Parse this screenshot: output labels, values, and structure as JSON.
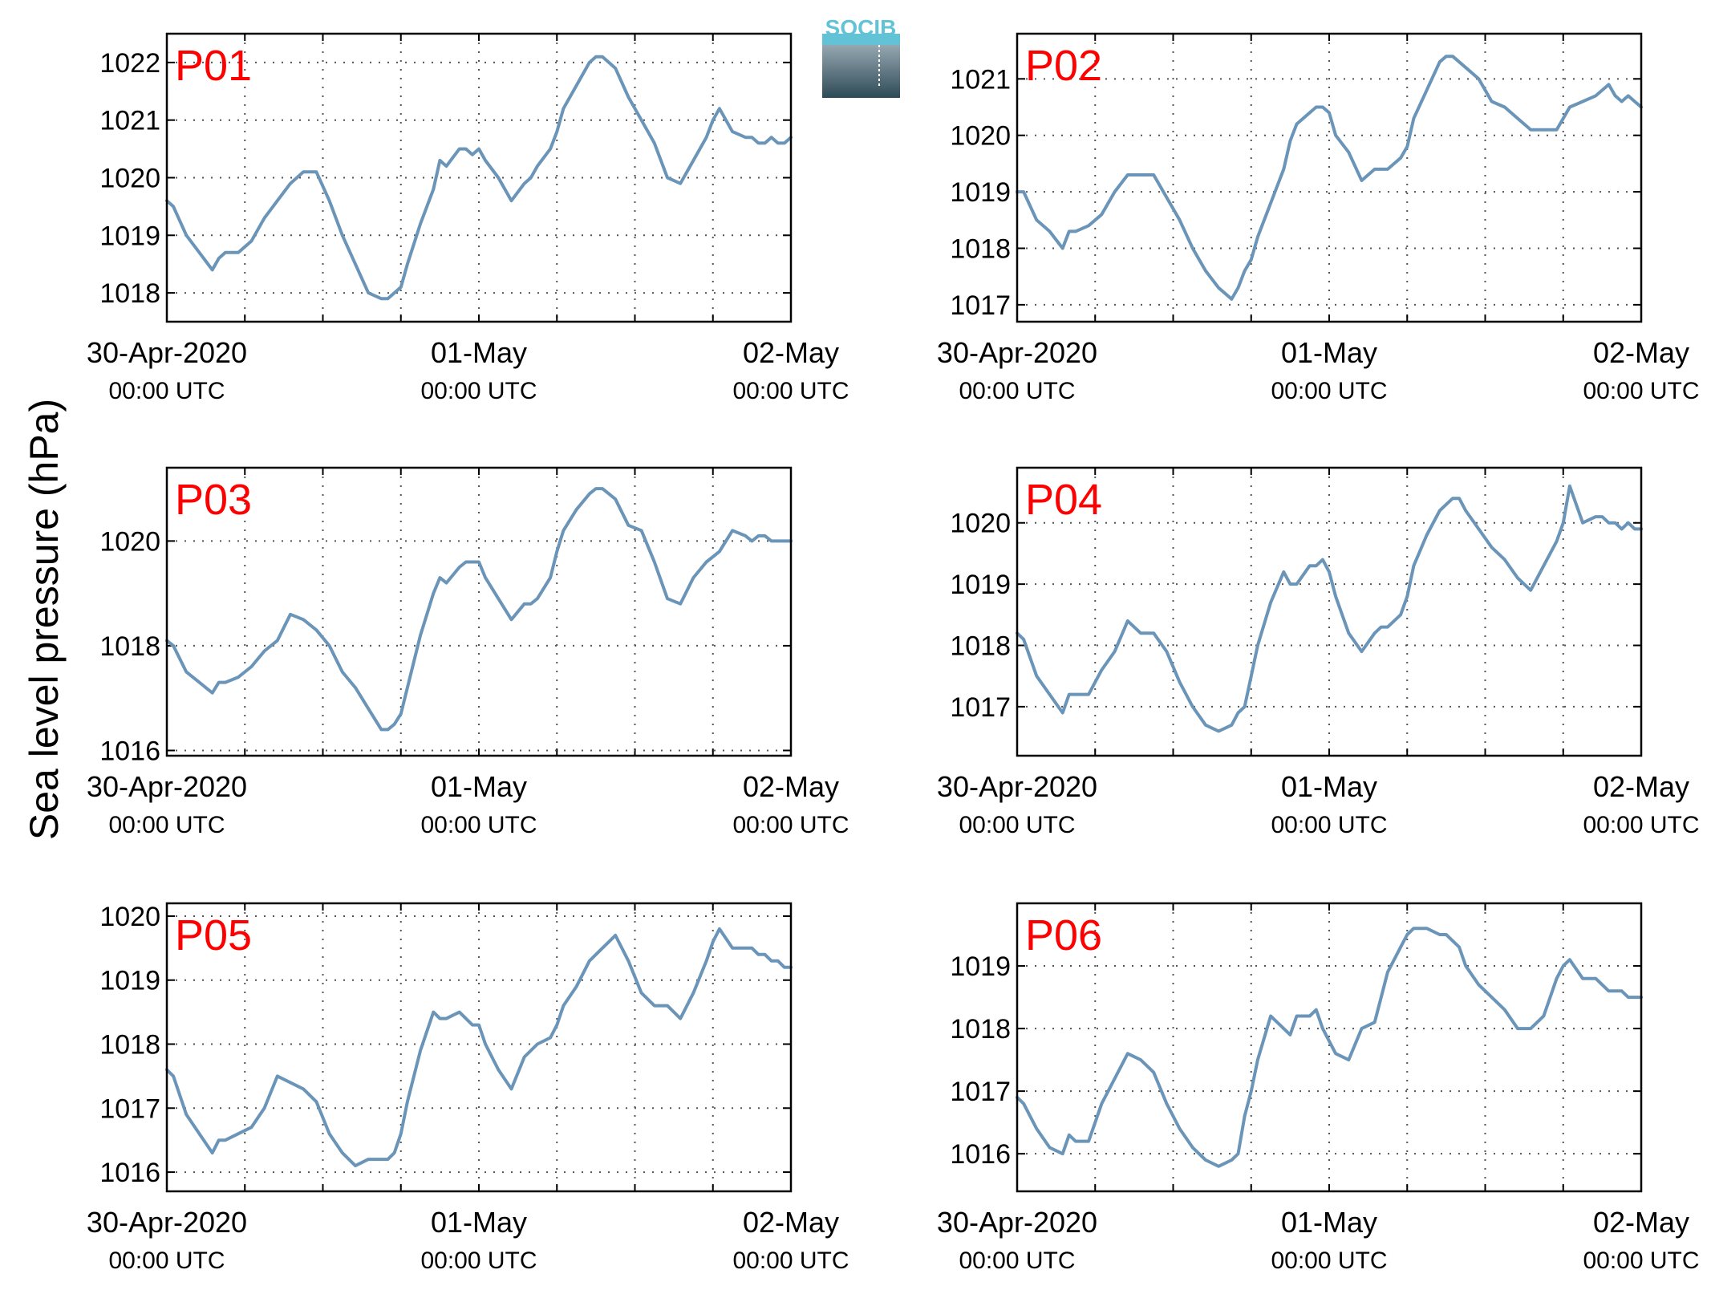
{
  "figure": {
    "ylabel": "Sea level pressure (hPa)",
    "logo_text": "SOCIB"
  },
  "colors": {
    "line": "#6a95b8",
    "panel_label": "#ff0000",
    "axis": "#000000",
    "grid": "#555555",
    "logo_top": "#62c3d6",
    "logo_bottom": "#2e4a57"
  },
  "chart_data": [
    {
      "type": "line",
      "title": "P01",
      "xlim": [
        0,
        48
      ],
      "ylim": [
        1017.5,
        1022.5
      ],
      "grid": true,
      "yticks": [
        1018,
        1019,
        1020,
        1021,
        1022
      ],
      "xticks": [
        {
          "x": 0,
          "label": "30-Apr-2020",
          "sublabel": "00:00 UTC"
        },
        {
          "x": 24,
          "label": "01-May",
          "sublabel": "00:00 UTC"
        },
        {
          "x": 48,
          "label": "02-May",
          "sublabel": "00:00 UTC"
        }
      ],
      "series": [
        {
          "x": [
            0,
            0.5,
            1.5,
            2.5,
            3.5,
            4,
            4.5,
            5.5,
            6.5,
            7.5,
            8.5,
            9.5,
            10.5,
            11.5,
            12.5,
            13.5,
            14.5,
            15.5,
            16.5,
            17,
            17.5,
            18,
            18.5,
            19.5,
            20.5,
            21,
            21.5,
            22.5,
            23,
            23.5,
            24,
            24.5,
            25.5,
            26.5,
            27.5,
            28,
            28.5,
            29.5,
            30,
            30.5,
            31.5,
            32.5,
            33,
            33.5,
            34,
            34.5,
            35.5,
            36.5,
            37.5,
            38.5,
            39.5,
            40.5,
            41.5,
            42,
            42.5,
            43.5,
            44.5,
            45,
            45.5,
            46,
            46.5,
            47,
            47.5,
            48
          ],
          "y": [
            1019.6,
            1019.5,
            1019.0,
            1018.7,
            1018.4,
            1018.6,
            1018.7,
            1018.7,
            1018.9,
            1019.3,
            1019.6,
            1019.9,
            1020.1,
            1020.1,
            1019.6,
            1019.0,
            1018.5,
            1018.0,
            1017.9,
            1017.9,
            1018.0,
            1018.1,
            1018.5,
            1019.2,
            1019.8,
            1020.3,
            1020.2,
            1020.5,
            1020.5,
            1020.4,
            1020.5,
            1020.3,
            1020.0,
            1019.6,
            1019.9,
            1020.0,
            1020.2,
            1020.5,
            1020.8,
            1021.2,
            1021.6,
            1022.0,
            1022.1,
            1022.1,
            1022.0,
            1021.9,
            1021.4,
            1021.0,
            1020.6,
            1020.0,
            1019.9,
            1020.3,
            1020.7,
            1021.0,
            1021.2,
            1020.8,
            1020.7,
            1020.7,
            1020.6,
            1020.6,
            1020.7,
            1020.6,
            1020.6,
            1020.7
          ]
        }
      ]
    },
    {
      "type": "line",
      "title": "P02",
      "xlim": [
        0,
        48
      ],
      "ylim": [
        1016.7,
        1021.8
      ],
      "grid": true,
      "yticks": [
        1017,
        1018,
        1019,
        1020,
        1021
      ],
      "xticks": [
        {
          "x": 0,
          "label": "30-Apr-2020",
          "sublabel": "00:00 UTC"
        },
        {
          "x": 24,
          "label": "01-May",
          "sublabel": "00:00 UTC"
        },
        {
          "x": 48,
          "label": "02-May",
          "sublabel": "00:00 UTC"
        }
      ],
      "series": [
        {
          "x": [
            0,
            0.5,
            1.5,
            2.5,
            3.5,
            4,
            4.5,
            5.5,
            6.5,
            7.5,
            8.5,
            9.5,
            10.5,
            11.5,
            12.5,
            13.5,
            14.5,
            15.5,
            16.5,
            17,
            17.5,
            18,
            18.5,
            19.5,
            20.5,
            21,
            21.5,
            22.5,
            23,
            23.5,
            24,
            24.5,
            25.5,
            26.5,
            27.5,
            28,
            28.5,
            29.5,
            30,
            30.5,
            31.5,
            32.5,
            33,
            33.5,
            34,
            34.5,
            35.5,
            36.5,
            37.5,
            38.5,
            39.5,
            40.5,
            41.5,
            42,
            42.5,
            43.5,
            44.5,
            45,
            45.5,
            46,
            46.5,
            47,
            47.5,
            48
          ],
          "y": [
            1019.0,
            1019.0,
            1018.5,
            1018.3,
            1018.0,
            1018.3,
            1018.3,
            1018.4,
            1018.6,
            1019.0,
            1019.3,
            1019.3,
            1019.3,
            1018.9,
            1018.5,
            1018.0,
            1017.6,
            1017.3,
            1017.1,
            1017.3,
            1017.6,
            1017.8,
            1018.2,
            1018.8,
            1019.4,
            1019.9,
            1020.2,
            1020.4,
            1020.5,
            1020.5,
            1020.4,
            1020.0,
            1019.7,
            1019.2,
            1019.4,
            1019.4,
            1019.4,
            1019.6,
            1019.8,
            1020.3,
            1020.8,
            1021.3,
            1021.4,
            1021.4,
            1021.3,
            1021.2,
            1021.0,
            1020.6,
            1020.5,
            1020.3,
            1020.1,
            1020.1,
            1020.1,
            1020.3,
            1020.5,
            1020.6,
            1020.7,
            1020.8,
            1020.9,
            1020.7,
            1020.6,
            1020.7,
            1020.6,
            1020.5
          ]
        }
      ]
    },
    {
      "type": "line",
      "title": "P03",
      "xlim": [
        0,
        48
      ],
      "ylim": [
        1015.9,
        1021.4
      ],
      "grid": true,
      "yticks": [
        1016,
        1018,
        1020
      ],
      "xticks": [
        {
          "x": 0,
          "label": "30-Apr-2020",
          "sublabel": "00:00 UTC"
        },
        {
          "x": 24,
          "label": "01-May",
          "sublabel": "00:00 UTC"
        },
        {
          "x": 48,
          "label": "02-May",
          "sublabel": "00:00 UTC"
        }
      ],
      "series": [
        {
          "x": [
            0,
            0.5,
            1.5,
            2.5,
            3.5,
            4,
            4.5,
            5.5,
            6.5,
            7.5,
            8.5,
            9.5,
            10.5,
            11.5,
            12.5,
            13.5,
            14.5,
            15.5,
            16.5,
            17,
            17.5,
            18,
            18.5,
            19.5,
            20.5,
            21,
            21.5,
            22.5,
            23,
            23.5,
            24,
            24.5,
            25.5,
            26.5,
            27.5,
            28,
            28.5,
            29.5,
            30,
            30.5,
            31.5,
            32.5,
            33,
            33.5,
            34,
            34.5,
            35.5,
            36.5,
            37.5,
            38.5,
            39.5,
            40.5,
            41.5,
            42,
            42.5,
            43.5,
            44.5,
            45,
            45.5,
            46,
            46.5,
            47,
            47.5,
            48
          ],
          "y": [
            1018.1,
            1018.0,
            1017.5,
            1017.3,
            1017.1,
            1017.3,
            1017.3,
            1017.4,
            1017.6,
            1017.9,
            1018.1,
            1018.6,
            1018.5,
            1018.3,
            1018.0,
            1017.5,
            1017.2,
            1016.8,
            1016.4,
            1016.4,
            1016.5,
            1016.7,
            1017.2,
            1018.2,
            1019.0,
            1019.3,
            1019.2,
            1019.5,
            1019.6,
            1019.6,
            1019.6,
            1019.3,
            1018.9,
            1018.5,
            1018.8,
            1018.8,
            1018.9,
            1019.3,
            1019.8,
            1020.2,
            1020.6,
            1020.9,
            1021.0,
            1021.0,
            1020.9,
            1020.8,
            1020.3,
            1020.2,
            1019.6,
            1018.9,
            1018.8,
            1019.3,
            1019.6,
            1019.7,
            1019.8,
            1020.2,
            1020.1,
            1020.0,
            1020.1,
            1020.1,
            1020.0,
            1020.0,
            1020.0,
            1020.0
          ]
        }
      ]
    },
    {
      "type": "line",
      "title": "P04",
      "xlim": [
        0,
        48
      ],
      "ylim": [
        1016.2,
        1020.9
      ],
      "grid": true,
      "yticks": [
        1017,
        1018,
        1019,
        1020
      ],
      "xticks": [
        {
          "x": 0,
          "label": "30-Apr-2020",
          "sublabel": "00:00 UTC"
        },
        {
          "x": 24,
          "label": "01-May",
          "sublabel": "00:00 UTC"
        },
        {
          "x": 48,
          "label": "02-May",
          "sublabel": "00:00 UTC"
        }
      ],
      "series": [
        {
          "x": [
            0,
            0.5,
            1.5,
            2.5,
            3.5,
            4,
            4.5,
            5.5,
            6.5,
            7.5,
            8.5,
            9.5,
            10.5,
            11.5,
            12.5,
            13.5,
            14.5,
            15.5,
            16.5,
            17,
            17.5,
            18,
            18.5,
            19.5,
            20.5,
            21,
            21.5,
            22.5,
            23,
            23.5,
            24,
            24.5,
            25.5,
            26.5,
            27.5,
            28,
            28.5,
            29.5,
            30,
            30.5,
            31.5,
            32.5,
            33,
            33.5,
            34,
            34.5,
            35.5,
            36.5,
            37.5,
            38.5,
            39.5,
            40.5,
            41.5,
            42,
            42.5,
            43.5,
            44.5,
            45,
            45.5,
            46,
            46.5,
            47,
            47.5,
            48
          ],
          "y": [
            1018.2,
            1018.1,
            1017.5,
            1017.2,
            1016.9,
            1017.2,
            1017.2,
            1017.2,
            1017.6,
            1017.9,
            1018.4,
            1018.2,
            1018.2,
            1017.9,
            1017.4,
            1017.0,
            1016.7,
            1016.6,
            1016.7,
            1016.9,
            1017.0,
            1017.5,
            1018.0,
            1018.7,
            1019.2,
            1019.0,
            1019.0,
            1019.3,
            1019.3,
            1019.4,
            1019.2,
            1018.8,
            1018.2,
            1017.9,
            1018.2,
            1018.3,
            1018.3,
            1018.5,
            1018.8,
            1019.3,
            1019.8,
            1020.2,
            1020.3,
            1020.4,
            1020.4,
            1020.2,
            1019.9,
            1019.6,
            1019.4,
            1019.1,
            1018.9,
            1019.3,
            1019.7,
            1020.0,
            1020.6,
            1020.0,
            1020.1,
            1020.1,
            1020.0,
            1020.0,
            1019.9,
            1020.0,
            1019.9,
            1019.9
          ]
        }
      ]
    },
    {
      "type": "line",
      "title": "P05",
      "xlim": [
        0,
        48
      ],
      "ylim": [
        1015.7,
        1020.2
      ],
      "grid": true,
      "yticks": [
        1016,
        1017,
        1018,
        1019,
        1020
      ],
      "xticks": [
        {
          "x": 0,
          "label": "30-Apr-2020",
          "sublabel": "00:00 UTC"
        },
        {
          "x": 24,
          "label": "01-May",
          "sublabel": "00:00 UTC"
        },
        {
          "x": 48,
          "label": "02-May",
          "sublabel": "00:00 UTC"
        }
      ],
      "series": [
        {
          "x": [
            0,
            0.5,
            1.5,
            2.5,
            3.5,
            4,
            4.5,
            5.5,
            6.5,
            7.5,
            8.5,
            9.5,
            10.5,
            11.5,
            12.5,
            13.5,
            14.5,
            15.5,
            16.5,
            17,
            17.5,
            18,
            18.5,
            19.5,
            20.5,
            21,
            21.5,
            22.5,
            23,
            23.5,
            24,
            24.5,
            25.5,
            26.5,
            27.5,
            28,
            28.5,
            29.5,
            30,
            30.5,
            31.5,
            32.5,
            33,
            33.5,
            34,
            34.5,
            35.5,
            36.5,
            37.5,
            38.5,
            39.5,
            40.5,
            41.5,
            42,
            42.5,
            43.5,
            44.5,
            45,
            45.5,
            46,
            46.5,
            47,
            47.5,
            48
          ],
          "y": [
            1017.6,
            1017.5,
            1016.9,
            1016.6,
            1016.3,
            1016.5,
            1016.5,
            1016.6,
            1016.7,
            1017.0,
            1017.5,
            1017.4,
            1017.3,
            1017.1,
            1016.6,
            1016.3,
            1016.1,
            1016.2,
            1016.2,
            1016.2,
            1016.3,
            1016.6,
            1017.1,
            1017.9,
            1018.5,
            1018.4,
            1018.4,
            1018.5,
            1018.4,
            1018.3,
            1018.3,
            1018.0,
            1017.6,
            1017.3,
            1017.8,
            1017.9,
            1018.0,
            1018.1,
            1018.3,
            1018.6,
            1018.9,
            1019.3,
            1019.4,
            1019.5,
            1019.6,
            1019.7,
            1019.3,
            1018.8,
            1018.6,
            1018.6,
            1018.4,
            1018.8,
            1019.3,
            1019.6,
            1019.8,
            1019.5,
            1019.5,
            1019.5,
            1019.4,
            1019.4,
            1019.3,
            1019.3,
            1019.2,
            1019.2
          ]
        }
      ]
    },
    {
      "type": "line",
      "title": "P06",
      "xlim": [
        0,
        48
      ],
      "ylim": [
        1015.4,
        1020.0
      ],
      "grid": true,
      "yticks": [
        1016,
        1017,
        1018,
        1019
      ],
      "xticks": [
        {
          "x": 0,
          "label": "30-Apr-2020",
          "sublabel": "00:00 UTC"
        },
        {
          "x": 24,
          "label": "01-May",
          "sublabel": "00:00 UTC"
        },
        {
          "x": 48,
          "label": "02-May",
          "sublabel": "00:00 UTC"
        }
      ],
      "series": [
        {
          "x": [
            0,
            0.5,
            1.5,
            2.5,
            3.5,
            4,
            4.5,
            5.5,
            6.5,
            7.5,
            8.5,
            9.5,
            10.5,
            11.5,
            12.5,
            13.5,
            14.5,
            15.5,
            16.5,
            17,
            17.5,
            18,
            18.5,
            19.5,
            20.5,
            21,
            21.5,
            22.5,
            23,
            23.5,
            24,
            24.5,
            25.5,
            26.5,
            27.5,
            28,
            28.5,
            29.5,
            30,
            30.5,
            31.5,
            32.5,
            33,
            33.5,
            34,
            34.5,
            35.5,
            36.5,
            37.5,
            38.5,
            39.5,
            40.5,
            41.5,
            42,
            42.5,
            43.5,
            44.5,
            45,
            45.5,
            46,
            46.5,
            47,
            47.5,
            48
          ],
          "y": [
            1016.9,
            1016.8,
            1016.4,
            1016.1,
            1016.0,
            1016.3,
            1016.2,
            1016.2,
            1016.8,
            1017.2,
            1017.6,
            1017.5,
            1017.3,
            1016.8,
            1016.4,
            1016.1,
            1015.9,
            1015.8,
            1015.9,
            1016.0,
            1016.6,
            1017.0,
            1017.5,
            1018.2,
            1018.0,
            1017.9,
            1018.2,
            1018.2,
            1018.3,
            1018.0,
            1017.8,
            1017.6,
            1017.5,
            1018.0,
            1018.1,
            1018.5,
            1018.9,
            1019.3,
            1019.5,
            1019.6,
            1019.6,
            1019.5,
            1019.5,
            1019.4,
            1019.3,
            1019.0,
            1018.7,
            1018.5,
            1018.3,
            1018.0,
            1018.0,
            1018.2,
            1018.8,
            1019.0,
            1019.1,
            1018.8,
            1018.8,
            1018.7,
            1018.6,
            1018.6,
            1018.6,
            1018.5,
            1018.5,
            1018.5
          ]
        }
      ]
    }
  ]
}
